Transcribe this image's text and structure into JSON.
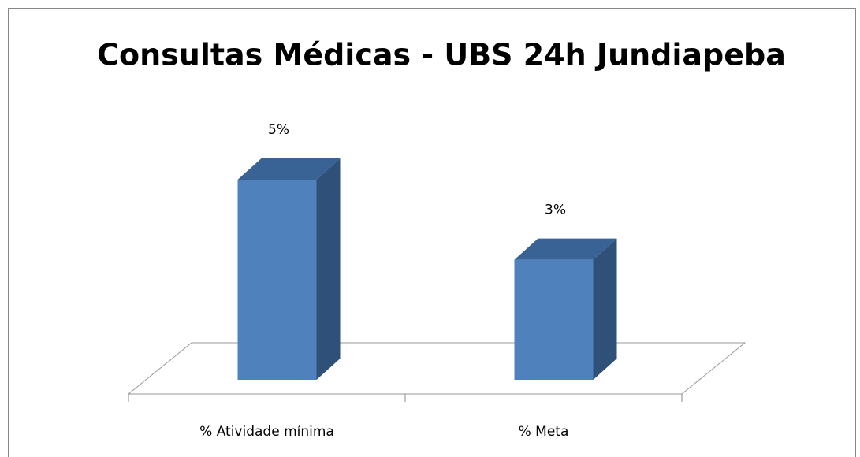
{
  "chart_data": {
    "type": "bar3d",
    "title": "Consultas Médicas - UBS 24h Jundiapeba",
    "categories": [
      "% Atividade mínima",
      "% Meta"
    ],
    "values": [
      5,
      3
    ],
    "value_labels": [
      "5%",
      "3%"
    ],
    "color": "#4f81bd"
  }
}
